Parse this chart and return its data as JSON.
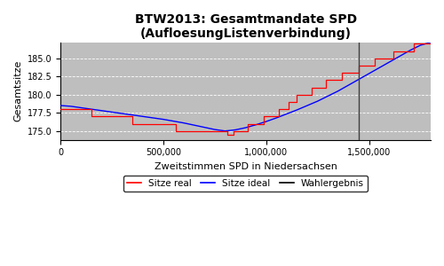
{
  "title": "BTW2013: Gesamtmandate SPD\n(AufloesungListenverbindung)",
  "xlabel": "Zweitstimmen SPD in Niedersachsen",
  "ylabel": "Gesamtsitze",
  "bg_color": "#bebebe",
  "fig_color": "#ffffff",
  "wahlergebnis_x": 1450000,
  "ylim": [
    173.8,
    187.2
  ],
  "xlim": [
    0,
    1800000
  ],
  "yticks": [
    175.0,
    177.5,
    180.0,
    182.5,
    185.0
  ],
  "xticks": [
    0,
    500000,
    1000000,
    1500000
  ],
  "ideal_x": [
    0,
    50000,
    100000,
    200000,
    300000,
    400000,
    500000,
    600000,
    650000,
    700000,
    750000,
    800000,
    850000,
    900000,
    950000,
    1000000,
    1050000,
    1100000,
    1150000,
    1200000,
    1250000,
    1300000,
    1350000,
    1400000,
    1450000,
    1500000,
    1550000,
    1600000,
    1650000,
    1700000,
    1750000,
    1800000
  ],
  "ideal_y": [
    178.5,
    178.4,
    178.2,
    177.8,
    177.4,
    177.0,
    176.6,
    176.1,
    175.8,
    175.5,
    175.2,
    175.0,
    175.15,
    175.45,
    175.85,
    176.3,
    176.8,
    177.35,
    177.9,
    178.5,
    179.1,
    179.8,
    180.5,
    181.3,
    182.1,
    182.9,
    183.7,
    184.5,
    185.3,
    186.1,
    186.8,
    187.2
  ],
  "real_x": [
    0,
    150000,
    150000,
    350000,
    350000,
    560000,
    560000,
    660000,
    660000,
    760000,
    760000,
    810000,
    810000,
    840000,
    840000,
    910000,
    910000,
    990000,
    990000,
    1060000,
    1060000,
    1110000,
    1110000,
    1150000,
    1150000,
    1220000,
    1220000,
    1290000,
    1290000,
    1370000,
    1370000,
    1450000,
    1450000,
    1530000,
    1530000,
    1620000,
    1620000,
    1720000,
    1720000,
    1800000
  ],
  "real_y": [
    178,
    178,
    177,
    177,
    176,
    176,
    175,
    175,
    175,
    175,
    175,
    175,
    174.5,
    174.5,
    175,
    175,
    176,
    176,
    177,
    177,
    178,
    178,
    179,
    179,
    180,
    180,
    181,
    181,
    182,
    182,
    183,
    183,
    184,
    184,
    185,
    185,
    186,
    186,
    187,
    187
  ],
  "legend_items": [
    "Sitze real",
    "Sitze ideal",
    "Wahlergebnis"
  ],
  "legend_colors": [
    "red",
    "blue",
    "black"
  ],
  "title_fontsize": 10,
  "label_fontsize": 8,
  "tick_fontsize": 7,
  "legend_fontsize": 7.5
}
